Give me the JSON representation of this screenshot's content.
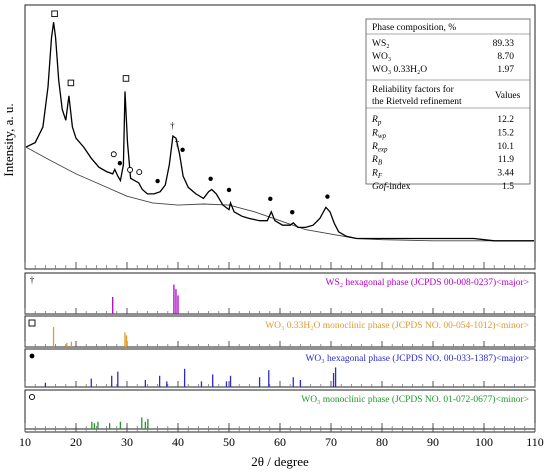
{
  "chart_data": {
    "type": "line",
    "xlabel": "2θ / degree",
    "ylabel": "Intensity, a. u.",
    "xlim": [
      10,
      110
    ],
    "x_ticks": [
      10,
      20,
      30,
      40,
      50,
      60,
      70,
      80,
      90,
      100,
      110
    ],
    "pattern": {
      "x": [
        10.2,
        12,
        13.5,
        14.5,
        15.2,
        15.6,
        16.0,
        16.6,
        17.3,
        18.0,
        18.6,
        18.9,
        19.3,
        20,
        21.5,
        23,
        24.5,
        26,
        27.2,
        27.6,
        28.2,
        28.7,
        29.3,
        29.6,
        30.1,
        30.7,
        31.5,
        32.3,
        33,
        34,
        35.3,
        36.5,
        37.5,
        38.3,
        39.0,
        39.6,
        40.3,
        41.0,
        42,
        43.5,
        45,
        46.0,
        46.6,
        47.5,
        48.8,
        50.0,
        50.3,
        51,
        52.5,
        54,
        56,
        57.5,
        58.3,
        59,
        60.5,
        62.0,
        62.6,
        63.5,
        65,
        66.5,
        67.8,
        69.0,
        69.8,
        70.6,
        71.5,
        73,
        75,
        78,
        82,
        86,
        90,
        94,
        98,
        102,
        106,
        109.8
      ],
      "y": [
        43,
        45,
        52,
        70,
        92,
        99,
        92,
        73,
        60,
        55,
        66,
        60,
        52,
        47,
        43,
        38,
        34,
        32,
        31,
        33,
        30,
        28,
        35,
        68,
        45,
        29,
        28,
        27,
        24,
        22,
        22,
        23,
        26,
        35,
        48,
        47,
        40,
        30,
        25,
        22,
        20,
        23,
        24,
        22,
        17,
        15,
        18,
        14,
        12,
        11,
        10,
        10,
        14,
        10,
        8,
        8,
        9,
        7,
        7,
        8,
        11,
        16,
        14,
        9,
        5,
        3,
        2,
        2,
        2,
        2,
        2,
        2,
        2,
        1,
        1,
        1
      ]
    },
    "background": {
      "x": [
        10.2,
        15,
        20,
        25,
        30,
        35,
        40,
        45,
        50,
        55,
        60,
        65,
        70,
        75,
        80,
        90,
        100,
        109.8
      ],
      "y": [
        43,
        37,
        31,
        26,
        21,
        18,
        17,
        17.5,
        17,
        14,
        10,
        6,
        4,
        2,
        1.5,
        1,
        1,
        1
      ]
    },
    "pattern_markers": [
      {
        "x": 15.8,
        "y": 101,
        "symbol": "□"
      },
      {
        "x": 19.0,
        "y": 70,
        "symbol": "□"
      },
      {
        "x": 29.8,
        "y": 72,
        "symbol": "□"
      },
      {
        "x": 38.9,
        "y": 51,
        "symbol": "†"
      },
      {
        "x": 39.8,
        "y": 43,
        "symbol": "†"
      },
      {
        "x": 27.4,
        "y": 38,
        "symbol": "○"
      },
      {
        "x": 28.6,
        "y": 34,
        "symbol": "●"
      },
      {
        "x": 30.6,
        "y": 31,
        "symbol": "○"
      },
      {
        "x": 32.4,
        "y": 30,
        "symbol": "○"
      },
      {
        "x": 36.0,
        "y": 26,
        "symbol": "●"
      },
      {
        "x": 40.9,
        "y": 40,
        "symbol": "●"
      },
      {
        "x": 46.4,
        "y": 27,
        "symbol": "●"
      },
      {
        "x": 50.0,
        "y": 22,
        "symbol": "●"
      },
      {
        "x": 58.1,
        "y": 18,
        "symbol": "●"
      },
      {
        "x": 62.4,
        "y": 12,
        "symbol": "●"
      },
      {
        "x": 69.3,
        "y": 19,
        "symbol": "●"
      }
    ],
    "table": {
      "phase_header": "Phase composition, %",
      "phases": [
        {
          "name": "WS₂",
          "value": "89.33"
        },
        {
          "name": "WO₃",
          "value": "8.70"
        },
        {
          "name": "WO₃ 0.33H₂O",
          "value": "1.97"
        }
      ],
      "reliability_header_1": "Reliability factors for",
      "reliability_header_2": "the Rietveld refinement",
      "values_header": "Values",
      "factors": [
        {
          "name": "R",
          "sub": "p",
          "value": "12.2"
        },
        {
          "name": "R",
          "sub": "wp",
          "value": "15.2"
        },
        {
          "name": "R",
          "sub": "exp",
          "value": "10.1"
        },
        {
          "name": "R",
          "sub": "B",
          "value": "11.9"
        },
        {
          "name": "R",
          "sub": "F",
          "value": "3.44"
        },
        {
          "name": "Gof",
          "sub": "",
          "suffix": "-index",
          "value": "1.5"
        }
      ]
    },
    "reference_panels": [
      {
        "marker": "†",
        "label": "WS₂ hexagonal phase  (JCPDS 00-008-0237)<major>",
        "color": "#b000c8",
        "peaks": [
          {
            "x": 27.2,
            "h": 0.55
          },
          {
            "x": 39.2,
            "h": 0.95
          },
          {
            "x": 39.6,
            "h": 0.8
          },
          {
            "x": 40.0,
            "h": 0.6
          }
        ]
      },
      {
        "marker": "□",
        "label": "WO₃ 0.33H₂O monoclinic phase (JCPDS NO. 00-054-1012)<minor>",
        "color": "#e09a30",
        "peaks": [
          {
            "x": 15.6,
            "h": 0.95
          },
          {
            "x": 18.2,
            "h": 0.2
          },
          {
            "x": 19.1,
            "h": 0.25
          },
          {
            "x": 29.6,
            "h": 0.7
          },
          {
            "x": 29.9,
            "h": 0.55
          }
        ]
      },
      {
        "marker": "●",
        "label": "WO₃ hexagonal phase (JCPDS NO. 00-033-1387)<major>",
        "color": "#2a2ad0",
        "peaks": [
          {
            "x": 14.0,
            "h": 0.15
          },
          {
            "x": 23.0,
            "h": 0.3
          },
          {
            "x": 27.0,
            "h": 0.4
          },
          {
            "x": 28.2,
            "h": 0.55
          },
          {
            "x": 33.6,
            "h": 0.25
          },
          {
            "x": 36.4,
            "h": 0.4
          },
          {
            "x": 37.8,
            "h": 0.2
          },
          {
            "x": 41.3,
            "h": 0.65
          },
          {
            "x": 44.6,
            "h": 0.2
          },
          {
            "x": 46.8,
            "h": 0.45
          },
          {
            "x": 49.5,
            "h": 0.2
          },
          {
            "x": 50.3,
            "h": 0.4
          },
          {
            "x": 56.0,
            "h": 0.35
          },
          {
            "x": 57.8,
            "h": 0.6
          },
          {
            "x": 62.6,
            "h": 0.35
          },
          {
            "x": 64.0,
            "h": 0.25
          },
          {
            "x": 70.5,
            "h": 0.5
          },
          {
            "x": 70.9,
            "h": 0.7
          }
        ]
      },
      {
        "marker": "○",
        "label": "WO₃ monoclinic phase (JCPDS NO. 01-072-0677)<minor>",
        "color": "#1f9a2a",
        "peaks": [
          {
            "x": 23.1,
            "h": 0.25
          },
          {
            "x": 23.6,
            "h": 0.2
          },
          {
            "x": 24.3,
            "h": 0.25
          },
          {
            "x": 26.6,
            "h": 0.2
          },
          {
            "x": 28.7,
            "h": 0.25
          },
          {
            "x": 32.9,
            "h": 0.4
          },
          {
            "x": 33.6,
            "h": 0.25
          },
          {
            "x": 34.1,
            "h": 0.35
          }
        ]
      }
    ]
  }
}
